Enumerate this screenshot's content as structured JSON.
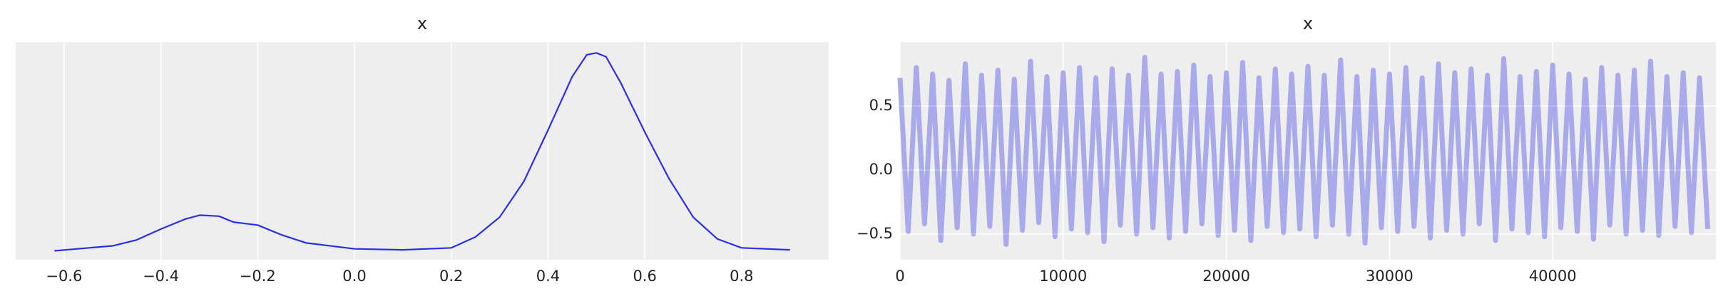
{
  "chart_data": [
    {
      "type": "line",
      "title": "x",
      "x": [
        -0.62,
        -0.5,
        -0.45,
        -0.4,
        -0.35,
        -0.32,
        -0.28,
        -0.25,
        -0.2,
        -0.15,
        -0.1,
        0,
        0.1,
        0.2,
        0.25,
        0.3,
        0.35,
        0.4,
        0.45,
        0.48,
        0.5,
        0.52,
        0.55,
        0.6,
        0.65,
        0.7,
        0.75,
        0.8,
        0.9
      ],
      "series": [
        {
          "color": "#2a2eec",
          "values": [
            0,
            0.05,
            0.11,
            0.22,
            0.32,
            0.36,
            0.35,
            0.29,
            0.26,
            0.16,
            0.08,
            0.02,
            0.01,
            0.03,
            0.14,
            0.34,
            0.7,
            1.22,
            1.76,
            1.98,
            2.0,
            1.96,
            1.7,
            1.2,
            0.73,
            0.34,
            0.12,
            0.03,
            0.01
          ]
        }
      ],
      "xlim": [
        -0.7,
        0.98
      ],
      "ylim": [
        -0.09,
        2.11
      ],
      "xticks": [
        {
          "value": -0.6,
          "label": "−0.6"
        },
        {
          "value": -0.4,
          "label": "−0.4"
        },
        {
          "value": -0.2,
          "label": "−0.2"
        },
        {
          "value": 0,
          "label": "0.0"
        },
        0.2,
        0.4,
        0.6,
        0.8
      ],
      "yticks": [],
      "grid": true
    },
    {
      "type": "line",
      "title": "x",
      "x": [
        0,
        500,
        1000,
        1500,
        2000,
        2500,
        3000,
        3500,
        4000,
        4500,
        5000,
        5500,
        6000,
        6500,
        7000,
        7500,
        8000,
        8500,
        9000,
        9500,
        10000,
        10500,
        11000,
        11500,
        12000,
        12500,
        13000,
        13500,
        14000,
        14500,
        15000,
        15500,
        16000,
        16500,
        17000,
        17500,
        18000,
        18500,
        19000,
        19500,
        20000,
        20500,
        21000,
        21500,
        22000,
        22500,
        23000,
        23500,
        24000,
        24500,
        25000,
        25500,
        26000,
        26500,
        27000,
        27500,
        28000,
        28500,
        29000,
        29500,
        30000,
        30500,
        31000,
        31500,
        32000,
        32500,
        33000,
        33500,
        34000,
        34500,
        35000,
        35500,
        36000,
        36500,
        37000,
        37500,
        38000,
        38500,
        39000,
        39500,
        40000,
        40500,
        41000,
        41500,
        42000,
        42500,
        43000,
        43500,
        44000,
        44500,
        45000,
        45500,
        46000,
        46500,
        47000,
        47500,
        48000,
        48500,
        49000,
        49500
      ],
      "series": [
        {
          "color": "#a9aaec",
          "values": [
            0.72,
            -0.48,
            0.8,
            -0.42,
            0.75,
            -0.55,
            0.7,
            -0.45,
            0.83,
            -0.5,
            0.74,
            -0.44,
            0.78,
            -0.58,
            0.71,
            -0.47,
            0.85,
            -0.41,
            0.73,
            -0.52,
            0.76,
            -0.46,
            0.8,
            -0.49,
            0.72,
            -0.56,
            0.79,
            -0.43,
            0.74,
            -0.5,
            0.88,
            -0.45,
            0.75,
            -0.53,
            0.77,
            -0.48,
            0.82,
            -0.42,
            0.73,
            -0.51,
            0.76,
            -0.47,
            0.84,
            -0.55,
            0.72,
            -0.44,
            0.79,
            -0.49,
            0.75,
            -0.46,
            0.81,
            -0.52,
            0.74,
            -0.43,
            0.86,
            -0.5,
            0.73,
            -0.57,
            0.78,
            -0.45,
            0.75,
            -0.48,
            0.8,
            -0.44,
            0.72,
            -0.53,
            0.83,
            -0.47,
            0.76,
            -0.5,
            0.79,
            -0.42,
            0.74,
            -0.55,
            0.87,
            -0.46,
            0.73,
            -0.49,
            0.77,
            -0.52,
            0.82,
            -0.45,
            0.75,
            -0.48,
            0.71,
            -0.54,
            0.8,
            -0.43,
            0.74,
            -0.5,
            0.78,
            -0.47,
            0.85,
            -0.51,
            0.73,
            -0.44,
            0.76,
            -0.49,
            0.72,
            -0.46
          ]
        }
      ],
      "xlim": [
        0,
        50000
      ],
      "ylim": [
        -0.7,
        1.0
      ],
      "xticks": [
        0,
        10000,
        20000,
        30000,
        40000
      ],
      "yticks": [
        {
          "value": -0.5,
          "label": "−0.5"
        },
        {
          "value": 0,
          "label": "0.0"
        },
        0.5
      ],
      "grid": true
    }
  ]
}
